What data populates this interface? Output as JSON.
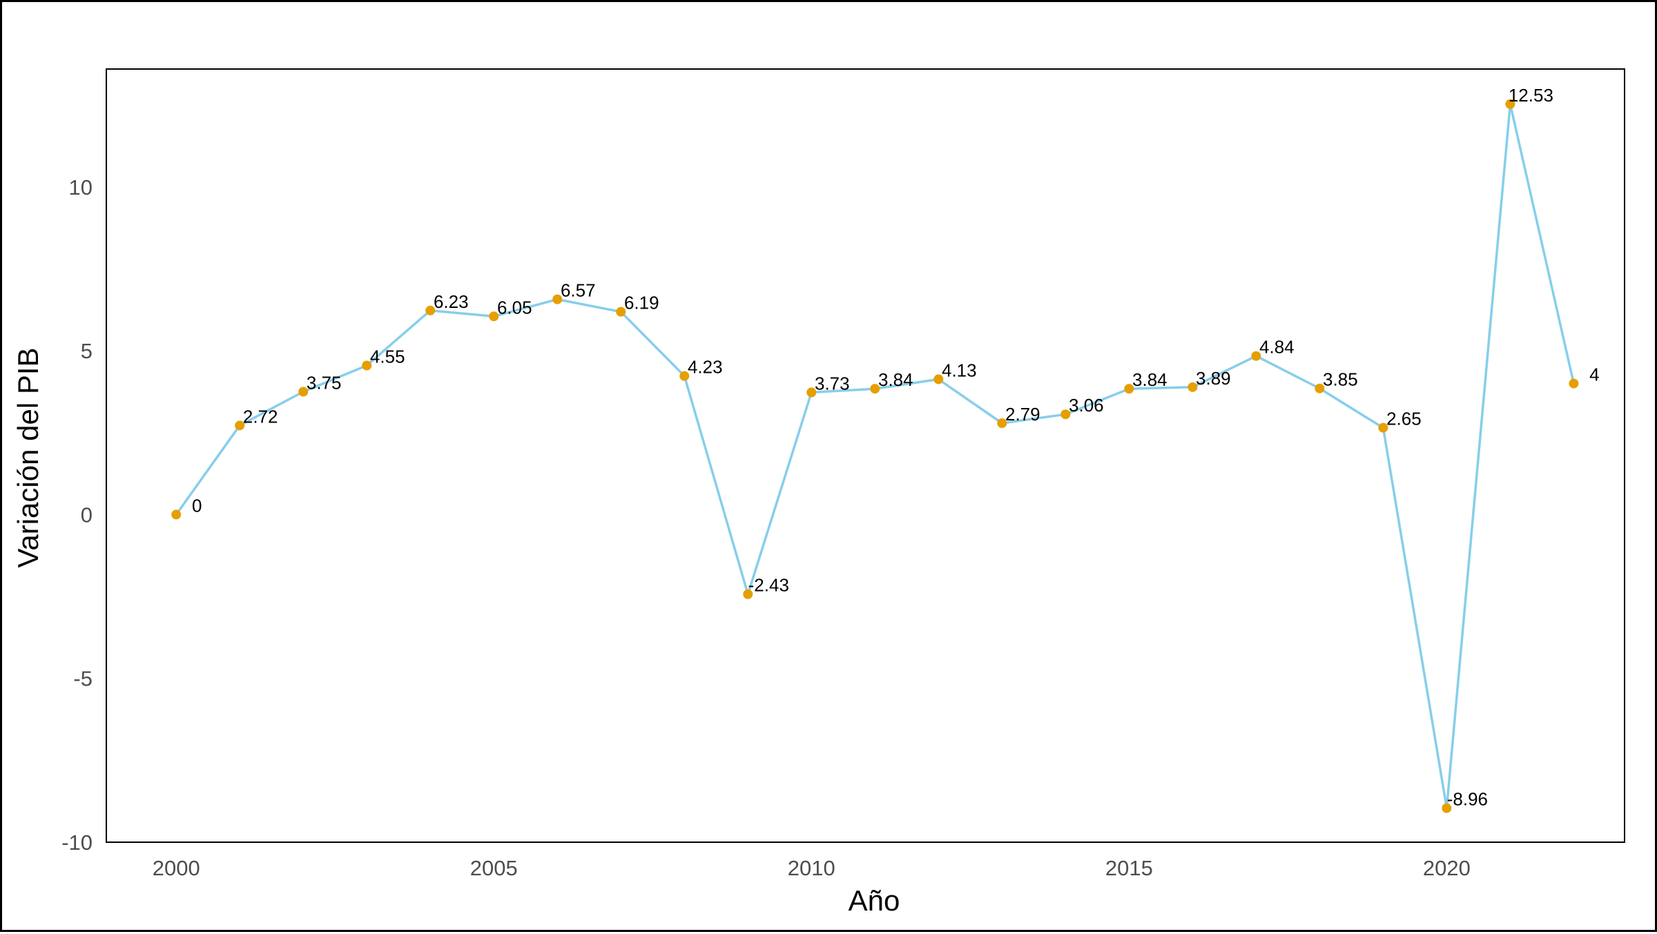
{
  "chart_data": {
    "type": "line",
    "title": "",
    "xlabel": "Año",
    "ylabel": "Variación del PIB",
    "x": [
      2000,
      2001,
      2002,
      2003,
      2004,
      2005,
      2006,
      2007,
      2008,
      2009,
      2010,
      2011,
      2012,
      2013,
      2014,
      2015,
      2016,
      2017,
      2018,
      2019,
      2020,
      2021,
      2022
    ],
    "series": [
      {
        "values": [
          0,
          2.72,
          3.75,
          4.55,
          6.23,
          6.05,
          6.57,
          6.19,
          4.23,
          -2.43,
          3.73,
          3.84,
          4.13,
          2.79,
          3.06,
          3.84,
          3.89,
          4.84,
          3.85,
          2.65,
          -8.96,
          12.53,
          4
        ]
      }
    ],
    "data_labels": [
      "0",
      "2.72",
      "3.75",
      "4.55",
      "6.23",
      "6.05",
      "6.57",
      "6.19",
      "4.23",
      "-2.43",
      "3.73",
      "3.84",
      "4.13",
      "2.79",
      "3.06",
      "3.84",
      "3.89",
      "4.84",
      "3.85",
      "2.65",
      "-8.96",
      "12.53",
      "4"
    ],
    "x_ticks": [
      "2000",
      "2005",
      "2010",
      "2015",
      "2020"
    ],
    "y_ticks": [
      "-10",
      "-5",
      "0",
      "5",
      "10"
    ],
    "xlim": [
      1998.9,
      2022.8
    ],
    "ylim": [
      -10,
      13.6
    ],
    "grid": false,
    "legend": "none",
    "colors": {
      "line": "#87CEEB",
      "point": "#E69F00",
      "frame": "#000000"
    }
  }
}
